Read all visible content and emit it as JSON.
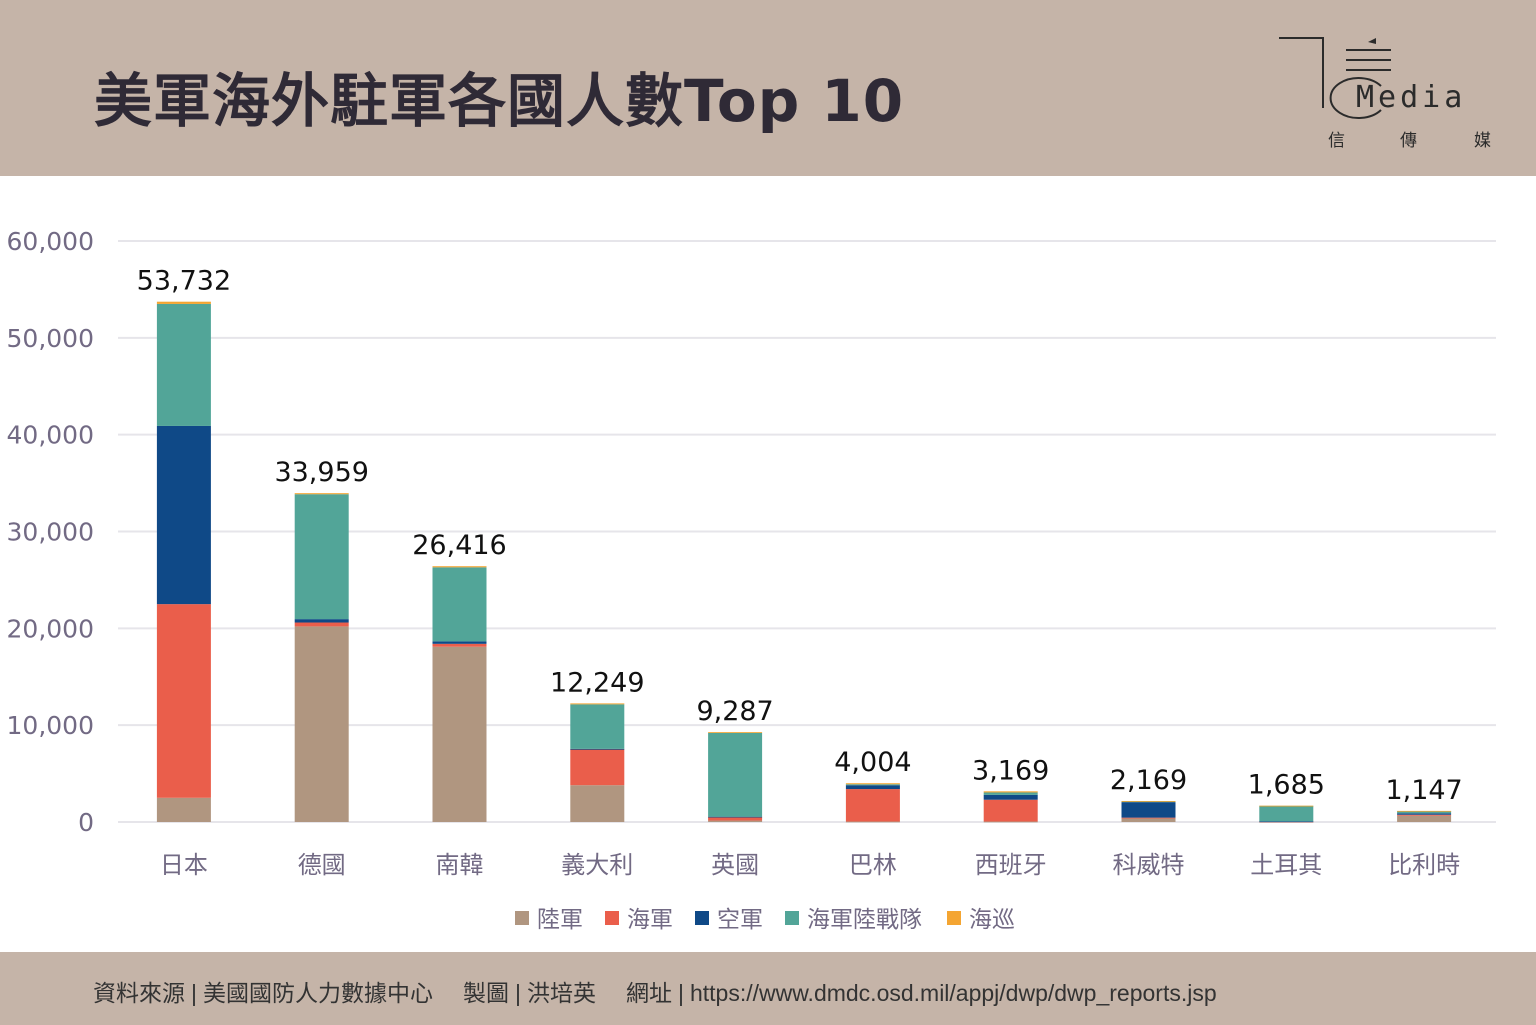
{
  "header": {
    "title": "美軍海外駐軍各國人數Top 10",
    "logo": {
      "wordmark": "Media",
      "chinese": [
        "信",
        "傳",
        "媒"
      ]
    }
  },
  "chart_data": {
    "type": "bar",
    "stacked": true,
    "title": "美軍海外駐軍各國人數Top 10",
    "xlabel": "",
    "ylabel": "",
    "ylim": [
      0,
      60000
    ],
    "yticks": [
      0,
      10000,
      20000,
      30000,
      40000,
      50000,
      60000
    ],
    "ytick_labels": [
      "0",
      "10,000",
      "20,000",
      "30,000",
      "40,000",
      "50,000",
      "60,000"
    ],
    "grid": true,
    "legend_position": "bottom",
    "categories": [
      "日本",
      "德國",
      "南韓",
      "義大利",
      "英國",
      "巴林",
      "西班牙",
      "科威特",
      "土耳其",
      "比利時"
    ],
    "totals": [
      53732,
      33959,
      26416,
      12249,
      9287,
      4004,
      3169,
      2169,
      1685,
      1147
    ],
    "total_labels": [
      "53,732",
      "33,959",
      "26,416",
      "12,249",
      "9,287",
      "4,004",
      "3,169",
      "2,169",
      "1,685",
      "1,147"
    ],
    "series": [
      {
        "name": "陸軍",
        "color": "#b09680",
        "values": [
          2500,
          20200,
          18100,
          3800,
          150,
          50,
          50,
          400,
          30,
          650
        ]
      },
      {
        "name": "海軍",
        "color": "#ea5e4b",
        "values": [
          20000,
          400,
          300,
          3700,
          350,
          3350,
          2250,
          50,
          20,
          100
        ]
      },
      {
        "name": "空軍",
        "color": "#0f4987",
        "values": [
          18400,
          350,
          250,
          50,
          50,
          400,
          500,
          1600,
          20,
          150
        ]
      },
      {
        "name": "海軍陸戰隊",
        "color": "#52a598",
        "values": [
          12600,
          12900,
          7650,
          4600,
          8650,
          100,
          250,
          100,
          1600,
          230
        ]
      },
      {
        "name": "海巡",
        "color": "#f4a532",
        "values": [
          232,
          109,
          116,
          99,
          87,
          104,
          119,
          19,
          15,
          17
        ]
      }
    ]
  },
  "footer": {
    "source_label": "資料來源",
    "source_value": "美國國防人力數據中心",
    "author_label": "製圖",
    "author_value": "洪培英",
    "url_label": "網址",
    "url_value": "https://www.dmdc.osd.mil/appj/dwp/dwp_reports.jsp",
    "separator": "|"
  }
}
